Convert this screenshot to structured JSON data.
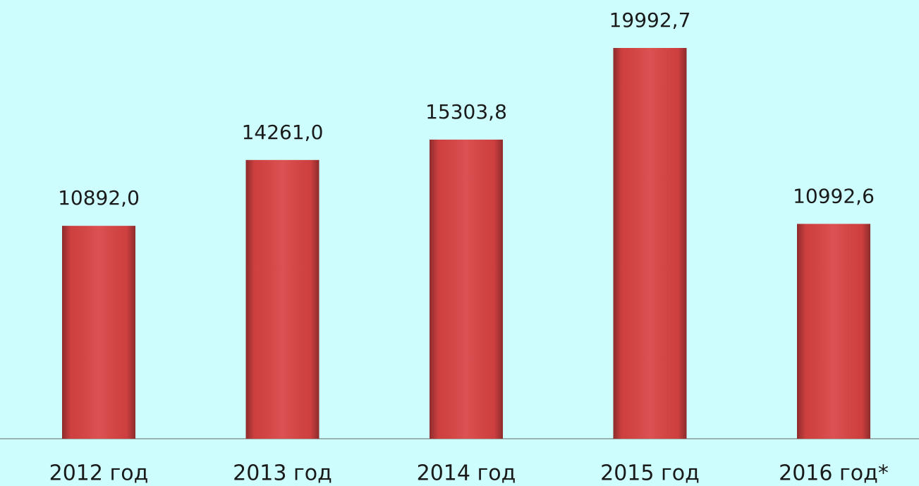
{
  "chart_data": {
    "type": "bar",
    "categories": [
      "2012 год",
      "2013 год",
      "2014 год",
      "2015 год",
      "2016 год*"
    ],
    "values": [
      10892.0,
      14261.0,
      15303.8,
      19992.7,
      10992.6
    ],
    "value_labels": [
      "10892,0",
      "14261,0",
      "15303,8",
      "19992,7",
      "10992,6"
    ],
    "color": "#d94343"
  }
}
